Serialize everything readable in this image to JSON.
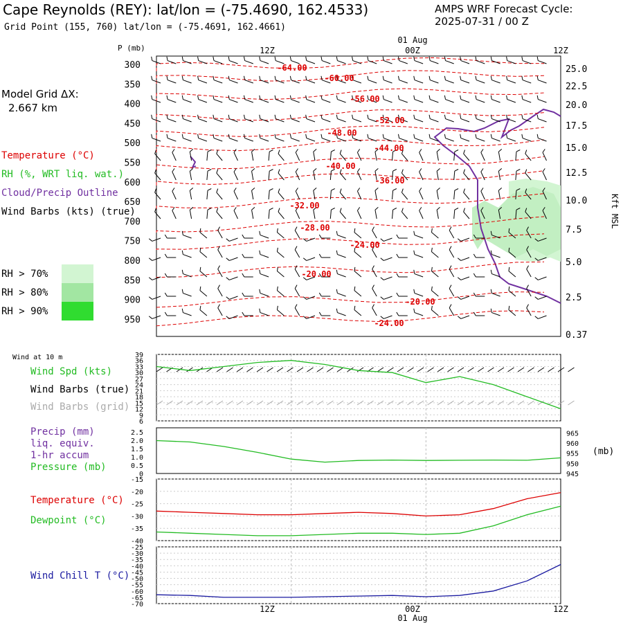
{
  "header": {
    "title": "Cape Reynolds (REY):  lat/lon = (-75.4690, 162.4533)",
    "subtitle": "Grid Point (155, 760) lat/lon = (-75.4691, 162.4661)",
    "cycle_line1": "AMPS WRF Forecast Cycle:",
    "cycle_line2": "2025-07-31 / 00  Z",
    "grid_label": "Model Grid ΔX:",
    "grid_value": "2.667 km"
  },
  "legend": {
    "temperature": "Temperature (°C)",
    "rh": "RH (%, WRT liq. wat.)",
    "cloud": "Cloud/Precip Outline",
    "wind": "Wind Barbs (kts) (true)",
    "rh70": "RH > 70%",
    "rh80": "RH > 80%",
    "rh90": "RH > 90%"
  },
  "colors": {
    "temperature": "#dd0000",
    "rh": "#22bb22",
    "cloud": "#7030a0",
    "wind": "#000000",
    "rh70": "#d2f5d2",
    "rh80": "#a2e6a2",
    "rh90": "#30dc30",
    "grid_barbs": "#aaaaaa",
    "windchill": "#1a1aa0"
  },
  "time_axis": {
    "ticks": [
      "12Z",
      "00Z",
      "12Z"
    ],
    "date_label": "01 Aug"
  },
  "chart_data": [
    {
      "type": "line",
      "title": "",
      "xlabel": "",
      "ylabel": "P (mb)",
      "ylabel_right": "Kft MSL",
      "y_ticks": [
        "300",
        "350",
        "400",
        "450",
        "500",
        "550",
        "600",
        "650",
        "700",
        "750",
        "800",
        "850",
        "900",
        "950"
      ],
      "y_right_ticks": [
        "25.0",
        "22.5",
        "20.0",
        "17.5",
        "15.0",
        "12.5",
        "10.0",
        "7.5",
        "5.0",
        "2.5",
        "0.37"
      ],
      "isotherm_labels": [
        "-64.00",
        "-60.00",
        "-56.00",
        "-52.00",
        "-48.00",
        "-44.00",
        "-40.00",
        "-36.00",
        "-32.00",
        "-28.00",
        "-24.00",
        "-20.00",
        "-20.00",
        "-24.00"
      ]
    },
    {
      "type": "line",
      "title": "Wind at 10 m",
      "y_ticks": [
        "39",
        "36",
        "33",
        "30",
        "27",
        "24",
        "21",
        "18",
        "15",
        "12",
        "9",
        "6"
      ],
      "ylim": [
        6,
        39
      ],
      "legend": [
        "Wind Spd (kts)",
        "Wind Barbs (true)",
        "Wind Barbs (grid)"
      ],
      "series": [
        {
          "name": "Wind Spd (kts)",
          "x": [
            0,
            3,
            6,
            9,
            12,
            15,
            18,
            21,
            24,
            27,
            30,
            33,
            36
          ],
          "values": [
            33,
            31,
            33,
            35,
            36,
            34,
            31,
            30,
            25,
            28,
            24,
            18,
            12
          ]
        }
      ]
    },
    {
      "type": "line",
      "title": "",
      "y_ticks": [
        "2.5",
        "2.0",
        "1.5",
        "1.0",
        "0.5",
        "0"
      ],
      "y_right_ticks": [
        "965",
        "960",
        "955",
        "950",
        "945"
      ],
      "ylabel_right": "(mb)",
      "legend": [
        "Precip (mm)",
        "liq. equiv.",
        "1-hr accum",
        "Pressure (mb)"
      ],
      "ylim": [
        945,
        967.5
      ],
      "series": [
        {
          "name": "Pressure (mb)",
          "x": [
            0,
            3,
            6,
            9,
            12,
            15,
            18,
            21,
            24,
            27,
            30,
            33,
            36
          ],
          "values": [
            961.2,
            960.5,
            958.3,
            955.4,
            952.1,
            950.6,
            951.4,
            951.6,
            951.4,
            951.5,
            951.6,
            951.5,
            952.7
          ]
        }
      ]
    },
    {
      "type": "line",
      "title": "",
      "y_ticks": [
        "-15",
        "-20",
        "-25",
        "-30",
        "-35",
        "-40"
      ],
      "ylim": [
        -40,
        -15
      ],
      "legend": [
        "Temperature (°C)",
        "Dewpoint (°C)"
      ],
      "series": [
        {
          "name": "Temperature (°C)",
          "x": [
            0,
            3,
            6,
            9,
            12,
            15,
            18,
            21,
            24,
            27,
            30,
            33,
            36
          ],
          "values": [
            -28,
            -28.5,
            -29,
            -29.5,
            -29.5,
            -29,
            -28.5,
            -29,
            -30,
            -29.5,
            -27,
            -23,
            -20.5
          ]
        },
        {
          "name": "Dewpoint (°C)",
          "x": [
            0,
            3,
            6,
            9,
            12,
            15,
            18,
            21,
            24,
            27,
            30,
            33,
            36
          ],
          "values": [
            -36.5,
            -37,
            -37.5,
            -38,
            -38,
            -37.5,
            -37,
            -37,
            -37.5,
            -37,
            -34,
            -29.5,
            -26
          ]
        }
      ]
    },
    {
      "type": "line",
      "title": "",
      "y_ticks": [
        "-25",
        "-30",
        "-35",
        "-40",
        "-45",
        "-50",
        "-55",
        "-60",
        "-65",
        "-70"
      ],
      "ylim": [
        -70,
        -25
      ],
      "legend": [
        "Wind Chill T (°C)"
      ],
      "series": [
        {
          "name": "Wind Chill T (°C)",
          "x": [
            0,
            3,
            6,
            9,
            12,
            15,
            18,
            21,
            24,
            27,
            30,
            33,
            36
          ],
          "values": [
            -63,
            -63.5,
            -65,
            -65,
            -65,
            -64.5,
            -64,
            -63.5,
            -64.5,
            -63.5,
            -60,
            -52,
            -39
          ]
        }
      ]
    }
  ]
}
